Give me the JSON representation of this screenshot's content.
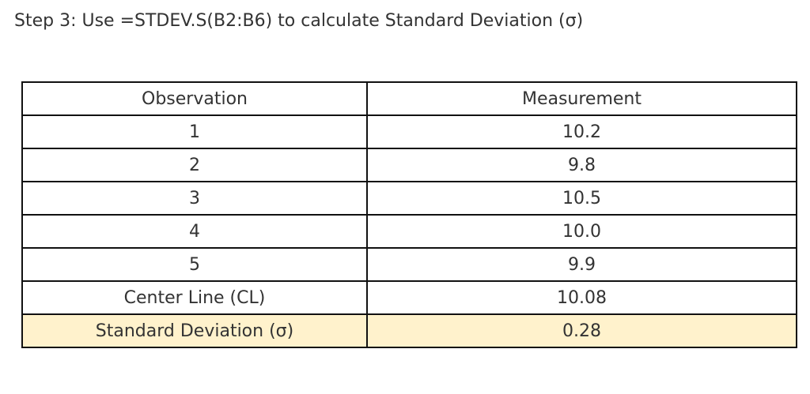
{
  "title": "Step 3: Use =STDEV.S(B2:B6) to calculate Standard Deviation (σ)",
  "headers": [
    "Observation",
    "Measurement"
  ],
  "rows": [
    [
      "1",
      "10.2"
    ],
    [
      "2",
      "9.8"
    ],
    [
      "3",
      "10.5"
    ],
    [
      "4",
      "10.0"
    ],
    [
      "5",
      "9.9"
    ],
    [
      "Center Line (CL)",
      "10.08"
    ],
    [
      "Standard Deviation (σ)",
      "0.28"
    ]
  ],
  "highlight_color": "#fff2cc"
}
